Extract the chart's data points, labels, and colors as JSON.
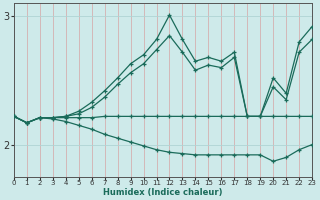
{
  "xlabel": "Humidex (Indice chaleur)",
  "xlim": [
    0,
    23
  ],
  "ylim": [
    1.75,
    3.1
  ],
  "yticks": [
    2,
    3
  ],
  "xticks": [
    0,
    1,
    2,
    3,
    4,
    5,
    6,
    7,
    8,
    9,
    10,
    11,
    12,
    13,
    14,
    15,
    16,
    17,
    18,
    19,
    20,
    21,
    22,
    23
  ],
  "bg_color": "#ceeaea",
  "grid_color": "#afd4d4",
  "line_color": "#1a6b5a",
  "lines": [
    {
      "x": [
        0,
        1,
        2,
        3,
        4,
        5,
        6,
        7,
        8,
        9,
        10,
        11,
        12,
        13,
        14,
        15,
        16,
        17,
        18,
        19,
        20,
        21,
        22,
        23
      ],
      "y": [
        2.22,
        2.17,
        2.21,
        2.21,
        2.22,
        2.26,
        2.33,
        2.42,
        2.52,
        2.63,
        2.7,
        2.82,
        3.01,
        2.82,
        2.65,
        2.68,
        2.65,
        2.72,
        2.22,
        2.22,
        2.52,
        2.4,
        2.8,
        2.92
      ]
    },
    {
      "x": [
        0,
        1,
        2,
        3,
        4,
        5,
        6,
        7,
        8,
        9,
        10,
        11,
        12,
        13,
        14,
        15,
        16,
        17,
        18,
        19,
        20,
        21,
        22,
        23
      ],
      "y": [
        2.22,
        2.17,
        2.21,
        2.21,
        2.22,
        2.24,
        2.29,
        2.37,
        2.47,
        2.56,
        2.63,
        2.74,
        2.85,
        2.72,
        2.58,
        2.62,
        2.6,
        2.68,
        2.22,
        2.22,
        2.45,
        2.35,
        2.72,
        2.82
      ]
    },
    {
      "x": [
        0,
        1,
        2,
        3,
        4,
        5,
        6,
        7,
        8,
        9,
        10,
        11,
        12,
        13,
        14,
        15,
        16,
        17,
        18,
        19,
        20,
        21,
        22,
        23
      ],
      "y": [
        2.22,
        2.17,
        2.21,
        2.21,
        2.21,
        2.21,
        2.21,
        2.22,
        2.22,
        2.22,
        2.22,
        2.22,
        2.22,
        2.22,
        2.22,
        2.22,
        2.22,
        2.22,
        2.22,
        2.22,
        2.22,
        2.22,
        2.22,
        2.22
      ]
    },
    {
      "x": [
        0,
        1,
        2,
        3,
        4,
        5,
        6,
        7,
        8,
        9,
        10,
        11,
        12,
        13,
        14,
        15,
        16,
        17,
        18,
        19,
        20,
        21,
        22,
        23
      ],
      "y": [
        2.22,
        2.17,
        2.21,
        2.2,
        2.18,
        2.15,
        2.12,
        2.08,
        2.05,
        2.02,
        1.99,
        1.96,
        1.94,
        1.93,
        1.92,
        1.92,
        1.92,
        1.92,
        1.92,
        1.92,
        1.87,
        1.9,
        1.96,
        2.0
      ]
    }
  ]
}
